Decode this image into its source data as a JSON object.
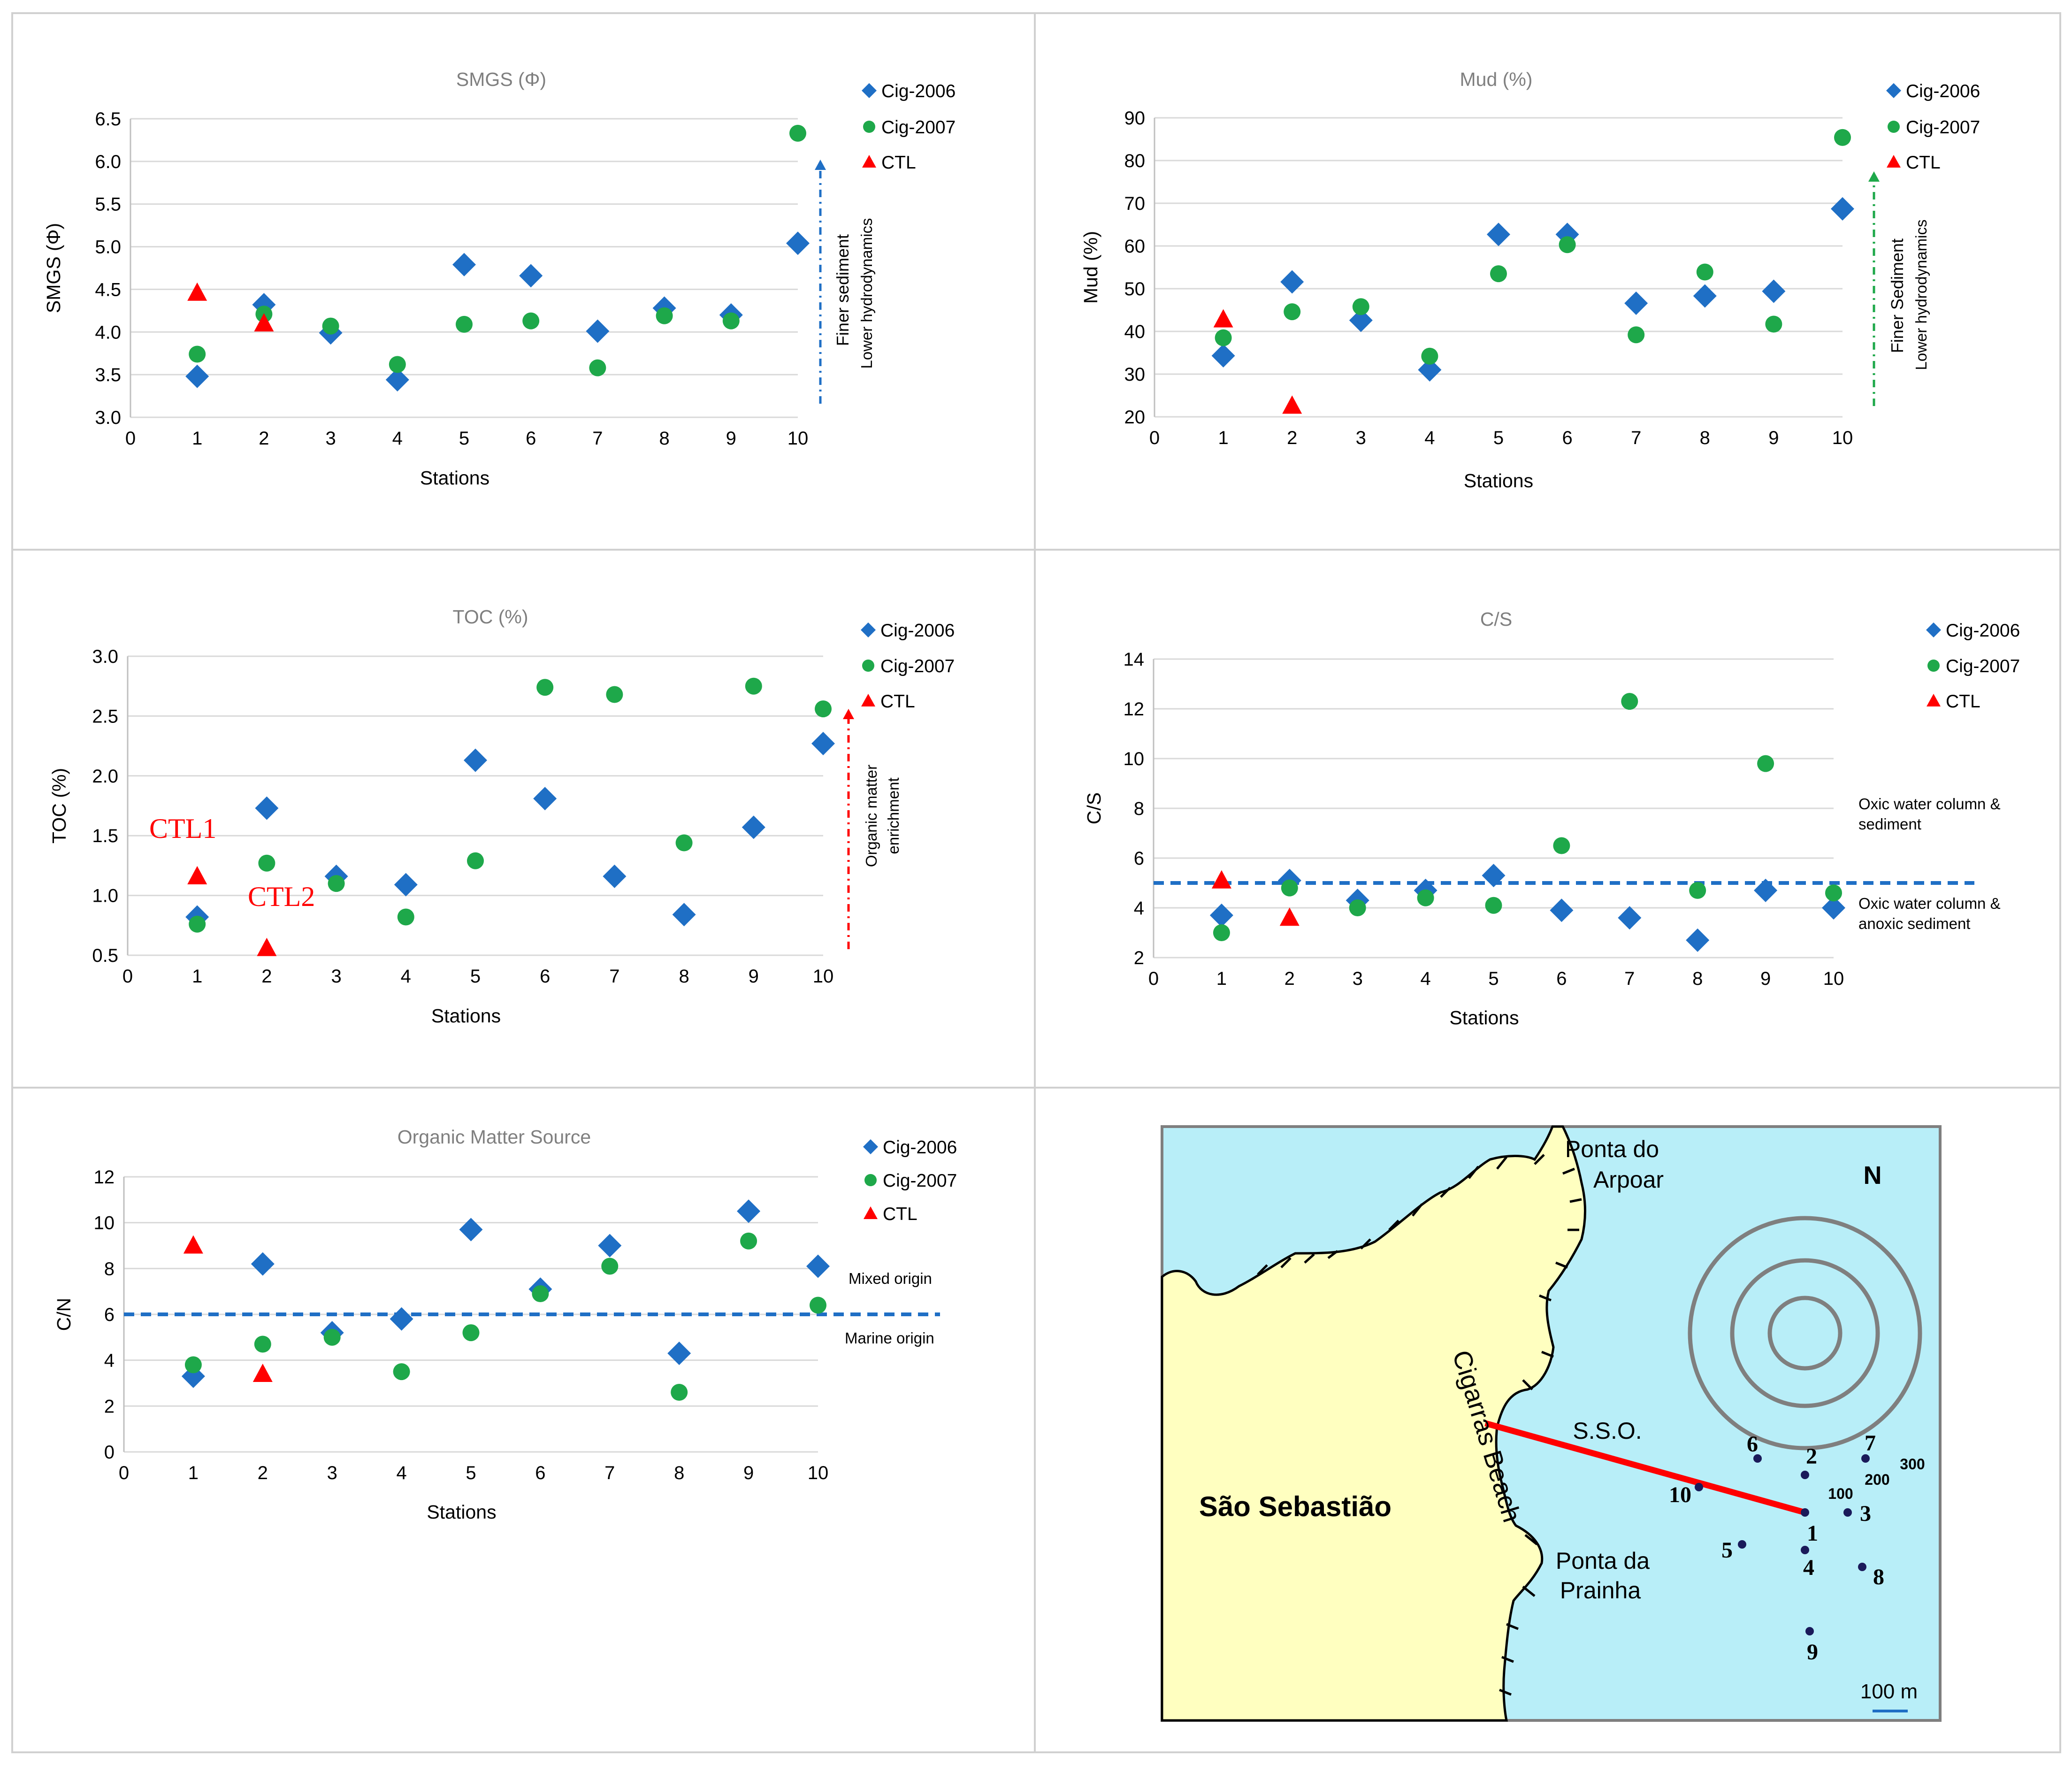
{
  "legend": {
    "s2006": "Cig-2006",
    "s2007": "Cig-2007",
    "ctl": "CTL"
  },
  "colors": {
    "s2006": "#1f6fc5",
    "s2007": "#1ea84a",
    "ctl": "#ff0000",
    "grid": "#d9d9d9",
    "panel_border": "#d0d0d0",
    "sea": "#b8eef8",
    "land": "#ffffc0"
  },
  "chart_data": [
    {
      "id": "smgs",
      "type": "scatter",
      "title": "SMGS  (Φ)",
      "xlabel": "Stations",
      "ylabel": "SMGS  (Φ)",
      "xlim": [
        0,
        10
      ],
      "ylim": [
        3.0,
        6.5
      ],
      "yticks": [
        "3.0",
        "3.5",
        "4.0",
        "4.5",
        "5.0",
        "5.5",
        "6.0",
        "6.5"
      ],
      "xticks": [
        "0",
        "1",
        "2",
        "3",
        "4",
        "5",
        "6",
        "7",
        "8",
        "9",
        "10"
      ],
      "series": [
        {
          "name": "Cig-2006",
          "x": [
            1,
            2,
            3,
            4,
            5,
            6,
            7,
            8,
            9,
            10
          ],
          "y": [
            3.48,
            4.32,
            3.99,
            3.44,
            4.79,
            4.66,
            4.01,
            4.28,
            4.2,
            5.04
          ]
        },
        {
          "name": "Cig-2007",
          "x": [
            1,
            2,
            3,
            4,
            5,
            6,
            7,
            8,
            9,
            10
          ],
          "y": [
            3.74,
            4.21,
            4.07,
            3.62,
            4.09,
            4.13,
            3.58,
            4.19,
            4.13,
            6.33
          ]
        },
        {
          "name": "CTL",
          "x": [
            1,
            2
          ],
          "y": [
            4.46,
            4.1
          ]
        }
      ],
      "annotations": [
        "Finer sediment",
        "Lower hydrodynamics"
      ]
    },
    {
      "id": "mud",
      "type": "scatter",
      "title": "Mud (%)",
      "xlabel": "Stations",
      "ylabel": "Mud  (%)",
      "xlim": [
        0,
        10
      ],
      "ylim": [
        20,
        90
      ],
      "yticks": [
        "20",
        "30",
        "40",
        "50",
        "60",
        "70",
        "80",
        "90"
      ],
      "xticks": [
        "0",
        "1",
        "2",
        "3",
        "4",
        "5",
        "6",
        "7",
        "8",
        "9",
        "10"
      ],
      "series": [
        {
          "name": "Cig-2006",
          "x": [
            1,
            2,
            3,
            4,
            5,
            6,
            7,
            8,
            9,
            10
          ],
          "y": [
            34.3,
            51.6,
            42.6,
            31,
            62.7,
            62.7,
            46.6,
            48.3,
            49.4,
            68.7
          ]
        },
        {
          "name": "Cig-2007",
          "x": [
            1,
            2,
            3,
            4,
            5,
            6,
            7,
            8,
            9,
            10
          ],
          "y": [
            38.5,
            44.6,
            45.8,
            34.2,
            53.5,
            60.3,
            39.2,
            53.9,
            41.7,
            85.4
          ]
        },
        {
          "name": "CTL",
          "x": [
            1,
            2
          ],
          "y": [
            42.8,
            22.6
          ]
        }
      ],
      "annotations": [
        "Finer Sediment",
        "Lower hydrodynamics"
      ]
    },
    {
      "id": "toc",
      "type": "scatter",
      "title": "TOC (%)",
      "xlabel": "Stations",
      "ylabel": "TOC  (%)",
      "xlim": [
        0,
        10
      ],
      "ylim": [
        0.5,
        3.0
      ],
      "yticks": [
        "0.5",
        "1.0",
        "1.5",
        "2.0",
        "2.5",
        "3.0"
      ],
      "xticks": [
        "0",
        "1",
        "2",
        "3",
        "4",
        "5",
        "6",
        "7",
        "8",
        "9",
        "10"
      ],
      "series": [
        {
          "name": "Cig-2006",
          "x": [
            1,
            2,
            3,
            4,
            5,
            6,
            7,
            8,
            9,
            10
          ],
          "y": [
            0.82,
            1.73,
            1.16,
            1.09,
            2.13,
            1.81,
            1.16,
            0.84,
            1.57,
            2.27
          ]
        },
        {
          "name": "Cig-2007",
          "x": [
            1,
            2,
            3,
            4,
            5,
            6,
            7,
            8,
            9,
            10
          ],
          "y": [
            0.76,
            1.27,
            1.1,
            0.82,
            1.29,
            2.74,
            2.68,
            1.44,
            2.75,
            2.56
          ]
        },
        {
          "name": "CTL",
          "x": [
            1,
            2
          ],
          "y": [
            1.16,
            0.56
          ]
        }
      ],
      "annotations": [
        "Organic matter",
        "enrichment",
        "CTL1",
        "CTL2"
      ]
    },
    {
      "id": "cs",
      "type": "scatter",
      "title": "C/S",
      "xlabel": "Stations",
      "ylabel": "C/S",
      "xlim": [
        0,
        10
      ],
      "ylim": [
        2,
        14
      ],
      "yticks": [
        "2",
        "4",
        "6",
        "8",
        "10",
        "12",
        "14"
      ],
      "xticks": [
        "0",
        "1",
        "2",
        "3",
        "4",
        "5",
        "6",
        "7",
        "8",
        "9",
        "10"
      ],
      "series": [
        {
          "name": "Cig-2006",
          "x": [
            1,
            2,
            3,
            4,
            5,
            6,
            7,
            8,
            9,
            10
          ],
          "y": [
            3.7,
            5.1,
            4.3,
            4.7,
            5.3,
            3.9,
            3.6,
            2.7,
            4.7,
            4
          ]
        },
        {
          "name": "Cig-2007",
          "x": [
            1,
            2,
            3,
            4,
            5,
            6,
            7,
            8,
            9,
            10
          ],
          "y": [
            3,
            4.8,
            4,
            4.4,
            4.1,
            6.5,
            12.3,
            4.7,
            9.8,
            4.6
          ]
        },
        {
          "name": "CTL",
          "x": [
            1,
            2
          ],
          "y": [
            5.1,
            3.6
          ]
        }
      ],
      "reference_line": 5,
      "annotations": [
        "Oxic water column &",
        "sediment",
        "Oxic water column &",
        "anoxic sediment"
      ]
    },
    {
      "id": "om",
      "type": "scatter",
      "title": "Organic Matter Source",
      "xlabel": "Stations",
      "ylabel": "C/N",
      "xlim": [
        0,
        10
      ],
      "ylim": [
        0,
        12
      ],
      "yticks": [
        "0",
        "2",
        "4",
        "6",
        "8",
        "10",
        "12"
      ],
      "xticks": [
        "0",
        "1",
        "2",
        "3",
        "4",
        "5",
        "6",
        "7",
        "8",
        "9",
        "10"
      ],
      "series": [
        {
          "name": "Cig-2006",
          "x": [
            1,
            2,
            3,
            4,
            5,
            6,
            7,
            8,
            9,
            10
          ],
          "y": [
            3.3,
            8.2,
            5.2,
            5.8,
            9.7,
            7.1,
            9,
            4.3,
            10.5,
            8.1
          ]
        },
        {
          "name": "Cig-2007",
          "x": [
            1,
            2,
            3,
            4,
            5,
            6,
            7,
            8,
            9,
            10
          ],
          "y": [
            3.8,
            4.7,
            5,
            3.5,
            5.2,
            6.9,
            8.1,
            2.6,
            9.2,
            6.4
          ]
        },
        {
          "name": "CTL",
          "x": [
            1,
            2
          ],
          "y": [
            9,
            3.4
          ]
        }
      ],
      "reference_line": 6,
      "annotations": [
        "Mixed origin",
        "Marine origin"
      ]
    }
  ],
  "map": {
    "labels": {
      "ponta_arpoar_1": "Ponta do",
      "ponta_arpoar_2": "Arpoar",
      "north": "N",
      "sao_sebastiao": "São Sebastião",
      "cigarras_beach": "Cigarras Beach",
      "sso": "S.S.O.",
      "ponta_prainha_1": "Ponta da",
      "ponta_prainha_2": "Prainha",
      "scale": "100 m"
    },
    "rings": [
      "100",
      "200",
      "300"
    ],
    "stations": [
      "1",
      "2",
      "3",
      "4",
      "5",
      "6",
      "7",
      "8",
      "9",
      "10"
    ]
  }
}
